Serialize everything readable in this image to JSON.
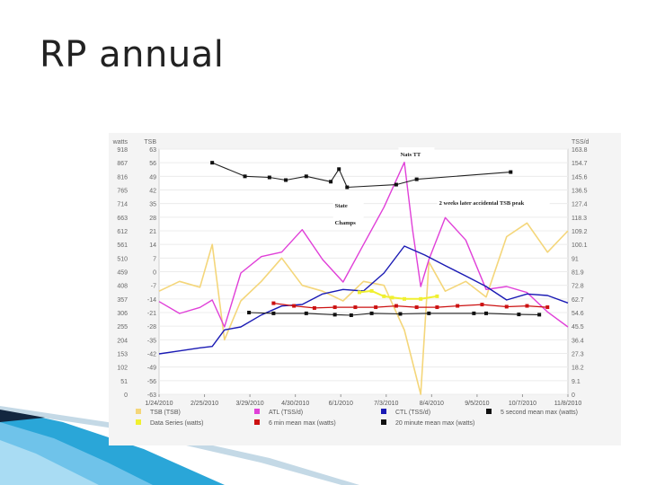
{
  "slide": {
    "title": "RP annual"
  },
  "chart_data": {
    "type": "line",
    "title": "",
    "left_axis": {
      "watts_header": "watts",
      "tsb_header": "TSB",
      "watts_ticks": [
        "918",
        "867",
        "816",
        "765",
        "714",
        "663",
        "612",
        "561",
        "510",
        "459",
        "408",
        "357",
        "306",
        "255",
        "204",
        "153",
        "102",
        "51",
        "0"
      ],
      "tsb_ticks": [
        "63",
        "56",
        "49",
        "42",
        "35",
        "28",
        "21",
        "14",
        "7",
        "0",
        "-7",
        "-14",
        "-21",
        "-28",
        "-35",
        "-42",
        "-49",
        "-56",
        "-63"
      ],
      "watts_range": [
        0,
        918
      ],
      "tsb_range": [
        -63,
        63
      ]
    },
    "right_axis": {
      "header": "TSS/d",
      "ticks": [
        "163.8",
        "154.7",
        "145.6",
        "136.5",
        "127.4",
        "118.3",
        "109.2",
        "100.1",
        "91",
        "81.9",
        "72.8",
        "62.7",
        "54.6",
        "45.5",
        "36.4",
        "27.3",
        "18.2",
        "9.1",
        "0"
      ],
      "range": [
        0,
        163.8
      ]
    },
    "x_tick_labels": [
      "1/24/2010",
      "2/25/2010",
      "3/29/2010",
      "4/30/2010",
      "6/1/2010",
      "7/3/2010",
      "8/4/2010",
      "9/5/2010",
      "10/7/2010",
      "11/8/2010"
    ],
    "annotations": [
      "Nats TT",
      "State",
      "Champs",
      "2 weeks later accidental TSB peak"
    ],
    "legend": [
      {
        "label": "TSB (TSB)",
        "color": "#f4d67a"
      },
      {
        "label": "ATL (TSS/d)",
        "color": "#e040d8"
      },
      {
        "label": "CTL (TSS/d)",
        "color": "#1a1ab4"
      },
      {
        "label": "5 second mean max  (watts)",
        "color": "#111111"
      },
      {
        "label": "Data Series  (watts)",
        "color": "#f0f030"
      },
      {
        "label": "6 min mean max  (watts)",
        "color": "#cc1111"
      },
      {
        "label": "20 minute mean max  (watts)",
        "color": "#111111"
      }
    ],
    "series": [
      {
        "name": "5 second mean max",
        "unit": "watts",
        "x": [
          0.13,
          0.21,
          0.27,
          0.31,
          0.36,
          0.42,
          0.44,
          0.46,
          0.58,
          0.63,
          0.86
        ],
        "values": [
          867,
          816,
          812,
          802,
          816,
          796,
          843,
          775,
          785,
          805,
          832
        ]
      },
      {
        "name": "20 minute mean max",
        "unit": "watts",
        "x": [
          0.22,
          0.28,
          0.36,
          0.43,
          0.47,
          0.52,
          0.59,
          0.66,
          0.77,
          0.8,
          0.88,
          0.93
        ],
        "values": [
          306,
          303,
          303,
          298,
          296,
          303,
          301,
          303,
          303,
          303,
          299,
          298
        ]
      },
      {
        "name": "6 min mean max",
        "unit": "watts",
        "x": [
          0.28,
          0.33,
          0.38,
          0.43,
          0.48,
          0.53,
          0.58,
          0.63,
          0.68,
          0.73,
          0.79,
          0.85,
          0.9,
          0.95
        ],
        "values": [
          341,
          331,
          323,
          326,
          326,
          326,
          331,
          326,
          326,
          331,
          336,
          328,
          331,
          326
        ]
      },
      {
        "name": "Data Series",
        "unit": "watts",
        "x": [
          0.49,
          0.52,
          0.55,
          0.57,
          0.6,
          0.64,
          0.68
        ],
        "values": [
          382,
          387,
          367,
          362,
          357,
          357,
          367
        ]
      },
      {
        "name": "CTL",
        "unit": "TSS/d",
        "x": [
          0.0,
          0.05,
          0.1,
          0.13,
          0.16,
          0.2,
          0.25,
          0.3,
          0.35,
          0.4,
          0.45,
          0.5,
          0.55,
          0.6,
          0.65,
          0.7,
          0.75,
          0.8,
          0.85,
          0.9,
          0.95,
          1.0
        ],
        "values": [
          27,
          29,
          31,
          32,
          43,
          45,
          53,
          59,
          60,
          67,
          70,
          69,
          81,
          99,
          93,
          86,
          79,
          72,
          63,
          67,
          66,
          61
        ]
      },
      {
        "name": "TSB",
        "unit": "TSB",
        "x": [
          0.0,
          0.05,
          0.1,
          0.13,
          0.16,
          0.2,
          0.25,
          0.3,
          0.35,
          0.4,
          0.45,
          0.5,
          0.55,
          0.6,
          0.64,
          0.66,
          0.7,
          0.75,
          0.8,
          0.85,
          0.9,
          0.95,
          1.0
        ],
        "values": [
          -10,
          -5,
          -8,
          14,
          -35,
          -15,
          -5,
          7,
          -7,
          -10,
          -15,
          -5,
          -7,
          -30,
          -63,
          5,
          -10,
          -5,
          -13,
          18,
          25,
          10,
          21
        ]
      },
      {
        "name": "ATL",
        "unit": "TSS/d",
        "x": [
          0.0,
          0.05,
          0.1,
          0.13,
          0.16,
          0.2,
          0.25,
          0.3,
          0.35,
          0.4,
          0.45,
          0.5,
          0.55,
          0.6,
          0.62,
          0.64,
          0.66,
          0.7,
          0.75,
          0.8,
          0.85,
          0.9,
          0.95,
          1.0
        ],
        "values": [
          62,
          54,
          58,
          63,
          45,
          81,
          92,
          95,
          110,
          90,
          75,
          100,
          125,
          155,
          110,
          72,
          90,
          118,
          103,
          70,
          72,
          68,
          55,
          45
        ]
      }
    ]
  }
}
